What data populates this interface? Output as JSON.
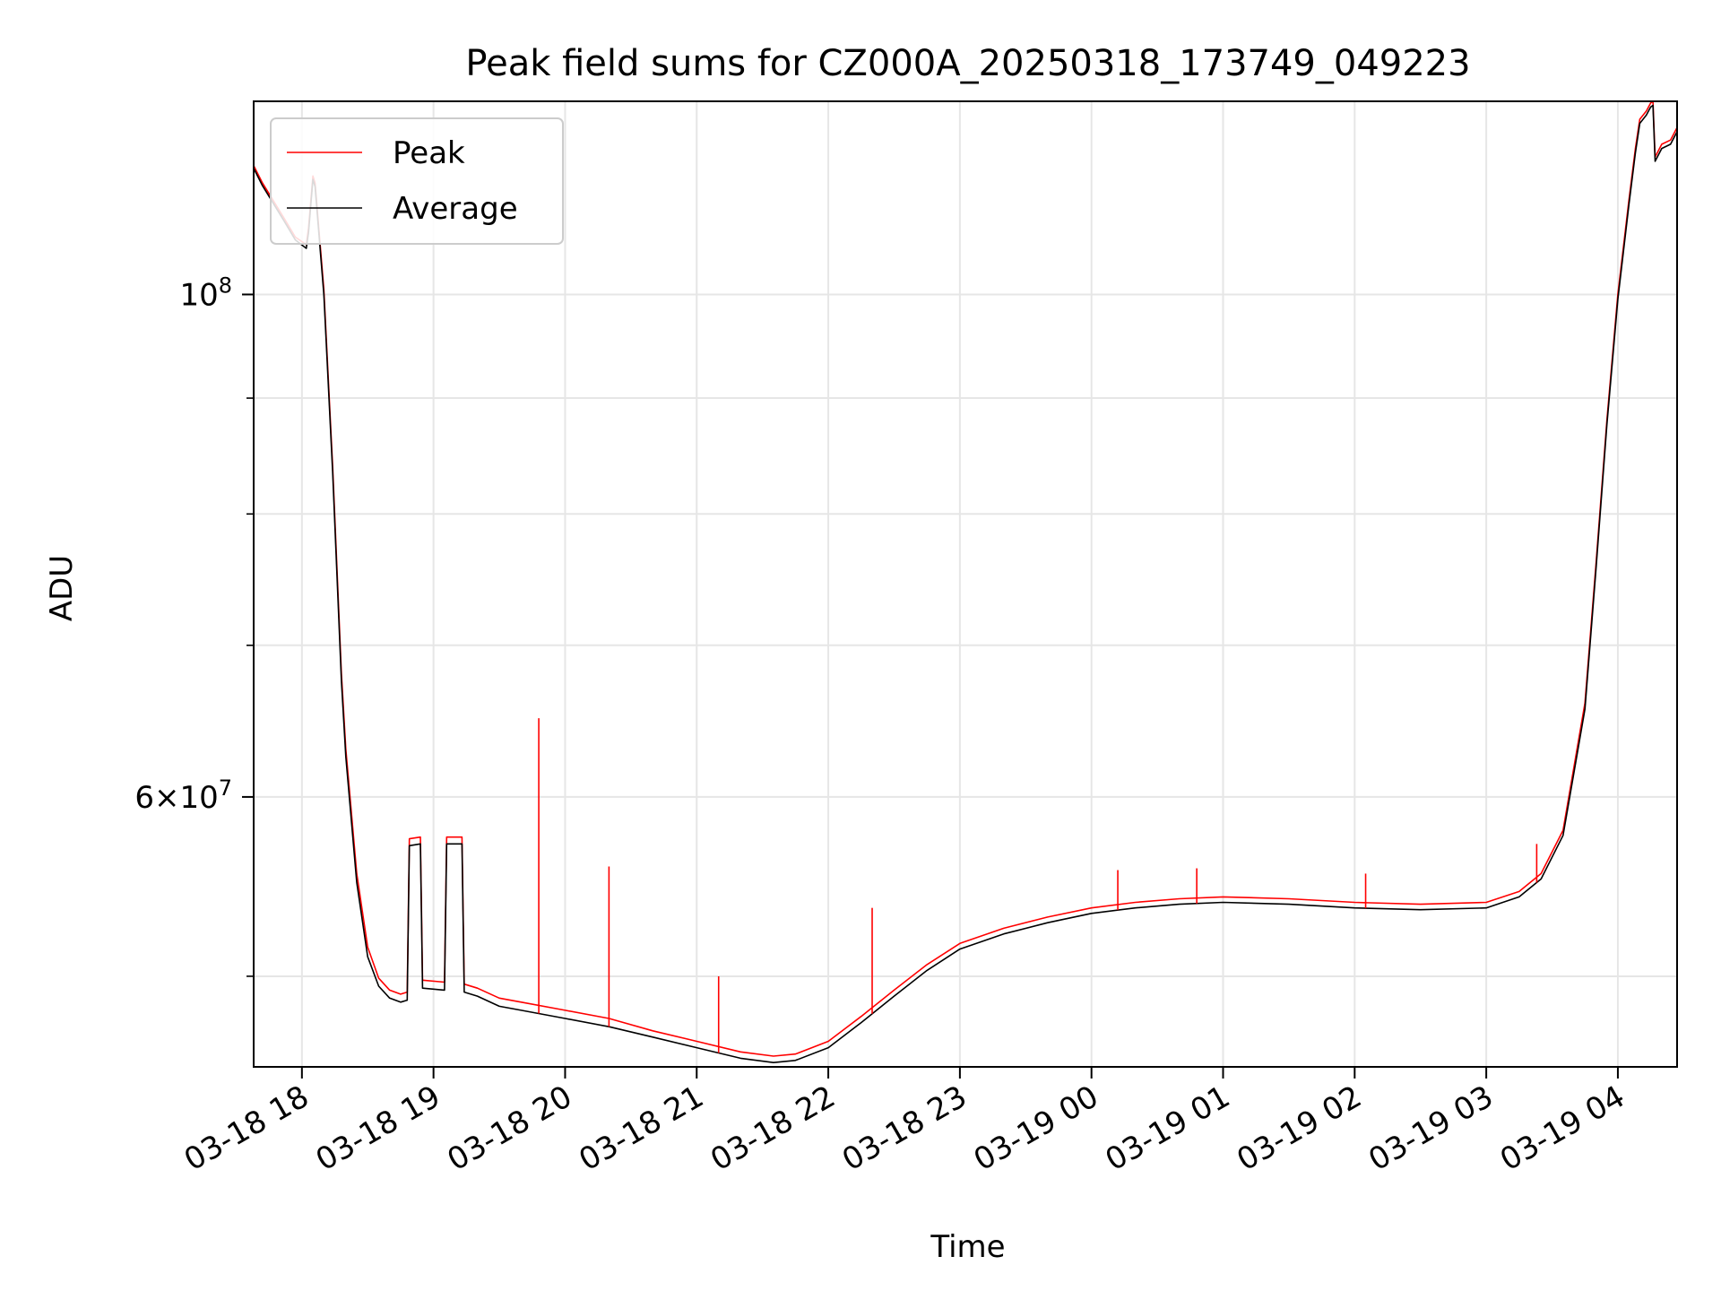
{
  "chart_data": {
    "type": "line",
    "title": "Peak field sums for CZ000A_20250318_173749_049223",
    "xlabel": "Time",
    "ylabel": "ADU",
    "x_axis": "time",
    "y_scale": "log",
    "xlim": [
      "2025-03-18 17:38",
      "2025-03-19 04:27"
    ],
    "ylim": [
      45600000,
      121700000
    ],
    "xticks": [
      {
        "value": "2025-03-18 18:00",
        "label": "03-18 18"
      },
      {
        "value": "2025-03-18 19:00",
        "label": "03-18 19"
      },
      {
        "value": "2025-03-18 20:00",
        "label": "03-18 20"
      },
      {
        "value": "2025-03-18 21:00",
        "label": "03-18 21"
      },
      {
        "value": "2025-03-18 22:00",
        "label": "03-18 22"
      },
      {
        "value": "2025-03-18 23:00",
        "label": "03-18 23"
      },
      {
        "value": "2025-03-19 00:00",
        "label": "03-19 00"
      },
      {
        "value": "2025-03-19 01:00",
        "label": "03-19 01"
      },
      {
        "value": "2025-03-19 02:00",
        "label": "03-19 02"
      },
      {
        "value": "2025-03-19 03:00",
        "label": "03-19 03"
      },
      {
        "value": "2025-03-19 04:00",
        "label": "03-19 04"
      }
    ],
    "yticks_major": [
      {
        "value": 100000000,
        "base": "10",
        "exp": "8"
      },
      {
        "value": 60000000,
        "mant": "6",
        "times": "×",
        "base": "10",
        "exp": "7"
      }
    ],
    "yticks_minor": [
      50000000,
      70000000,
      80000000,
      90000000
    ],
    "grid": true,
    "legend_position": "top-left",
    "series": [
      {
        "name": "Peak",
        "color": "#ff0000",
        "x": [
          "2025-03-18 17:38",
          "2025-03-18 17:42",
          "2025-03-18 17:47",
          "2025-03-18 17:52",
          "2025-03-18 17:57",
          "2025-03-18 18:02",
          "2025-03-18 18:03",
          "2025-03-18 18:05",
          "2025-03-18 18:06",
          "2025-03-18 18:10",
          "2025-03-18 18:14",
          "2025-03-18 18:18",
          "2025-03-18 18:20",
          "2025-03-18 18:25",
          "2025-03-18 18:30",
          "2025-03-18 18:35",
          "2025-03-18 18:40",
          "2025-03-18 18:45",
          "2025-03-18 18:48",
          "2025-03-18 18:49",
          "2025-03-18 18:54",
          "2025-03-18 18:55",
          "2025-03-18 19:05",
          "2025-03-18 19:06",
          "2025-03-18 19:13",
          "2025-03-18 19:14",
          "2025-03-18 19:20",
          "2025-03-18 19:30",
          "2025-03-18 19:40",
          "2025-03-18 20:00",
          "2025-03-18 20:20",
          "2025-03-18 20:40",
          "2025-03-18 21:00",
          "2025-03-18 21:20",
          "2025-03-18 21:35",
          "2025-03-18 21:45",
          "2025-03-18 22:00",
          "2025-03-18 22:15",
          "2025-03-18 22:30",
          "2025-03-18 22:45",
          "2025-03-18 23:00",
          "2025-03-18 23:20",
          "2025-03-18 23:40",
          "2025-03-19 00:00",
          "2025-03-19 00:20",
          "2025-03-19 00:40",
          "2025-03-19 01:00",
          "2025-03-19 01:30",
          "2025-03-19 02:00",
          "2025-03-19 02:30",
          "2025-03-19 03:00",
          "2025-03-19 03:15",
          "2025-03-19 03:25",
          "2025-03-19 03:35",
          "2025-03-19 03:45",
          "2025-03-19 03:50",
          "2025-03-19 03:55",
          "2025-03-19 04:00",
          "2025-03-19 04:05",
          "2025-03-19 04:08",
          "2025-03-19 04:10",
          "2025-03-19 04:13",
          "2025-03-19 04:15",
          "2025-03-19 04:16",
          "2025-03-19 04:17",
          "2025-03-19 04:20",
          "2025-03-19 04:24",
          "2025-03-19 04:27"
        ],
        "y": [
          114000000,
          112000000,
          110000000,
          108000000,
          106000000,
          105200000,
          107000000,
          112800000,
          112000000,
          100500000,
          84000000,
          68000000,
          63000000,
          55500000,
          51500000,
          49900000,
          49300000,
          49100000,
          49200000,
          57500000,
          57600000,
          49800000,
          49700000,
          57600000,
          57600000,
          49600000,
          49400000,
          48900000,
          48700000,
          48300000,
          47900000,
          47300000,
          46800000,
          46300000,
          46100000,
          46200000,
          46800000,
          48000000,
          49300000,
          50600000,
          51700000,
          52500000,
          53100000,
          53600000,
          53900000,
          54100000,
          54200000,
          54100000,
          53900000,
          53800000,
          53900000,
          54500000,
          55500000,
          58000000,
          66000000,
          76000000,
          88000000,
          100000000,
          110000000,
          116000000,
          119500000,
          120500000,
          121500000,
          121700000,
          115000000,
          116500000,
          117000000,
          118500000
        ],
        "spikes": [
          {
            "x": "2025-03-18 19:48",
            "y": 65000000
          },
          {
            "x": "2025-03-18 20:20",
            "y": 55900000
          },
          {
            "x": "2025-03-18 21:10",
            "y": 50000000
          },
          {
            "x": "2025-03-18 22:20",
            "y": 53600000
          },
          {
            "x": "2025-03-19 00:12",
            "y": 55700000
          },
          {
            "x": "2025-03-19 00:48",
            "y": 55800000
          },
          {
            "x": "2025-03-19 02:05",
            "y": 55500000
          },
          {
            "x": "2025-03-19 03:23",
            "y": 57200000
          }
        ]
      },
      {
        "name": "Average",
        "color": "#000000",
        "x": [
          "2025-03-18 17:38",
          "2025-03-18 17:42",
          "2025-03-18 17:47",
          "2025-03-18 17:52",
          "2025-03-18 17:57",
          "2025-03-18 18:02",
          "2025-03-18 18:03",
          "2025-03-18 18:05",
          "2025-03-18 18:06",
          "2025-03-18 18:10",
          "2025-03-18 18:14",
          "2025-03-18 18:18",
          "2025-03-18 18:20",
          "2025-03-18 18:25",
          "2025-03-18 18:30",
          "2025-03-18 18:35",
          "2025-03-18 18:40",
          "2025-03-18 18:45",
          "2025-03-18 18:48",
          "2025-03-18 18:49",
          "2025-03-18 18:54",
          "2025-03-18 18:55",
          "2025-03-18 19:05",
          "2025-03-18 19:06",
          "2025-03-18 19:13",
          "2025-03-18 19:14",
          "2025-03-18 19:20",
          "2025-03-18 19:30",
          "2025-03-18 19:40",
          "2025-03-18 20:00",
          "2025-03-18 20:20",
          "2025-03-18 20:40",
          "2025-03-18 21:00",
          "2025-03-18 21:20",
          "2025-03-18 21:35",
          "2025-03-18 21:45",
          "2025-03-18 22:00",
          "2025-03-18 22:15",
          "2025-03-18 22:30",
          "2025-03-18 22:45",
          "2025-03-18 23:00",
          "2025-03-18 23:20",
          "2025-03-18 23:40",
          "2025-03-19 00:00",
          "2025-03-19 00:20",
          "2025-03-19 00:40",
          "2025-03-19 01:00",
          "2025-03-19 01:30",
          "2025-03-19 02:00",
          "2025-03-19 02:30",
          "2025-03-19 03:00",
          "2025-03-19 03:15",
          "2025-03-19 03:25",
          "2025-03-19 03:35",
          "2025-03-19 03:45",
          "2025-03-19 03:50",
          "2025-03-19 03:55",
          "2025-03-19 04:00",
          "2025-03-19 04:05",
          "2025-03-19 04:08",
          "2025-03-19 04:10",
          "2025-03-19 04:13",
          "2025-03-19 04:15",
          "2025-03-19 04:16",
          "2025-03-19 04:17",
          "2025-03-19 04:20",
          "2025-03-19 04:24",
          "2025-03-19 04:27"
        ],
        "y": [
          113700000,
          111700000,
          109700000,
          107700000,
          105700000,
          104800000,
          106500000,
          112400000,
          111600000,
          100000000,
          83500000,
          67500000,
          62500000,
          55000000,
          51000000,
          49500000,
          48900000,
          48700000,
          48800000,
          57100000,
          57200000,
          49400000,
          49300000,
          57200000,
          57200000,
          49200000,
          49000000,
          48500000,
          48300000,
          47900000,
          47500000,
          47000000,
          46500000,
          46000000,
          45800000,
          45900000,
          46500000,
          47700000,
          49000000,
          50300000,
          51400000,
          52200000,
          52800000,
          53300000,
          53600000,
          53800000,
          53900000,
          53800000,
          53600000,
          53500000,
          53600000,
          54200000,
          55200000,
          57700000,
          65600000,
          75600000,
          87600000,
          99500000,
          109500000,
          115500000,
          119000000,
          120000000,
          121000000,
          121200000,
          114500000,
          116000000,
          116500000,
          118000000
        ]
      }
    ]
  }
}
